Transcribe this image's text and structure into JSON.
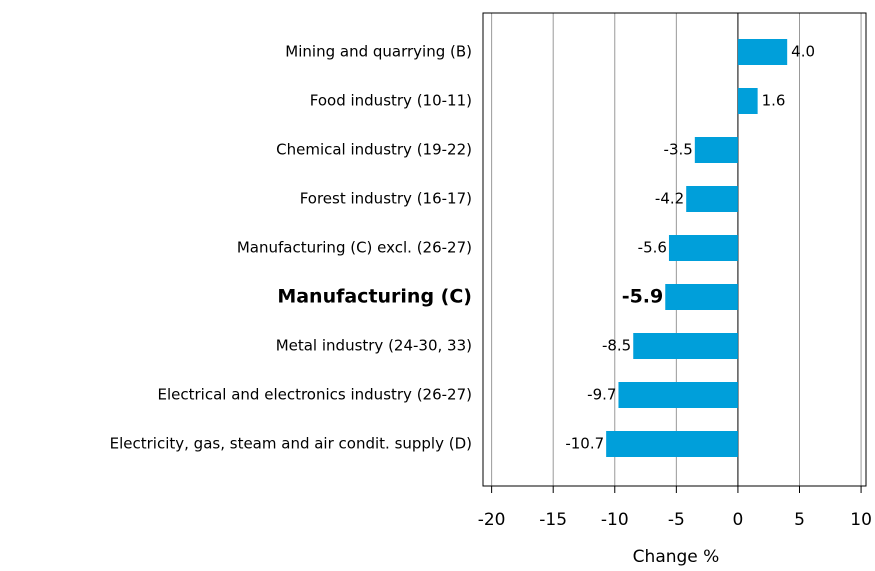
{
  "chart_data": {
    "type": "bar",
    "orientation": "horizontal",
    "categories": [
      "Mining and quarrying (B)",
      "Food industry (10-11)",
      "Chemical industry (19-22)",
      "Forest industry (16-17)",
      "Manufacturing (C) excl. (26-27)",
      "Manufacturing (C)",
      "Metal industry (24-30, 33)",
      "Electrical and electronics industry (26-27)",
      "Electricity, gas, steam and air condit. supply (D)"
    ],
    "values": [
      4.0,
      1.6,
      -3.5,
      -4.2,
      -5.6,
      -5.9,
      -8.5,
      -9.7,
      -10.7
    ],
    "value_labels": [
      "4.0",
      "1.6",
      "-3.5",
      "-4.2",
      "-5.6",
      "-5.9",
      "-8.5",
      "-9.7",
      "-10.7"
    ],
    "color": "#009fda",
    "highlight_index": 5,
    "xlabel": "Change %",
    "xlim": [
      -20.7,
      10.4
    ],
    "xticks": [
      -20,
      -15,
      -10,
      -5,
      0,
      5,
      10
    ],
    "grid": true
  }
}
